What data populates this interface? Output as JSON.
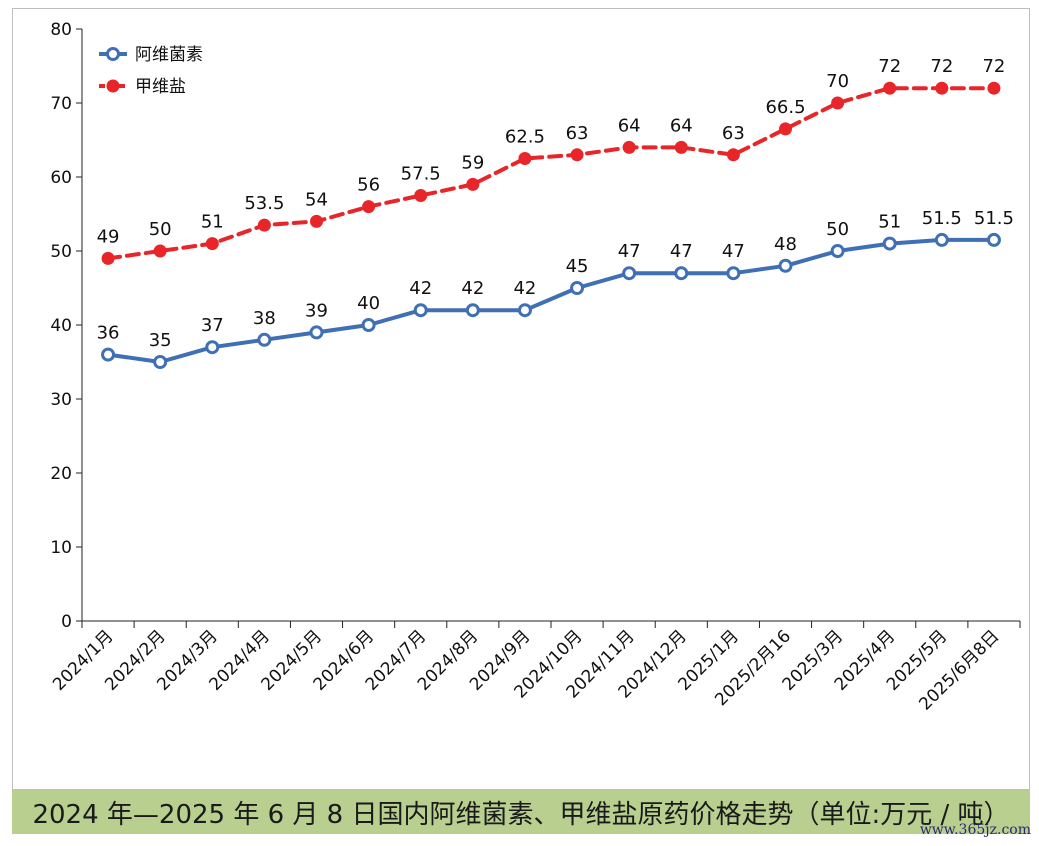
{
  "caption": "2024 年—2025 年 6 月 8 日国内阿维菌素、甲维盐原药价格走势（单位:万元 / 吨）",
  "watermark": "www.365jz.com",
  "chart_data": {
    "type": "line",
    "categories": [
      "2024/1月",
      "2024/2月",
      "2024/3月",
      "2024/4月",
      "2024/5月",
      "2024/6月",
      "2024/7月",
      "2024/8月",
      "2024/9月",
      "2024/10月",
      "2024/11月",
      "2024/12月",
      "2025/1月",
      "2025/2月16",
      "2025/3月",
      "2025/4月",
      "2025/5月",
      "2025/6月8日"
    ],
    "ylim": [
      0,
      80
    ],
    "yticks": [
      0,
      10,
      20,
      30,
      40,
      50,
      60,
      70,
      80
    ],
    "grid": false,
    "legend": "top-left",
    "series": [
      {
        "name": "阿维菌素",
        "color": "#3f6fb5",
        "dashed": false,
        "values": [
          36,
          35,
          37,
          38,
          39,
          40,
          42,
          42,
          42,
          45,
          47,
          47,
          47,
          48,
          50,
          51,
          51.5,
          51.5
        ],
        "labels": [
          "36",
          "35",
          "37",
          "38",
          "39",
          "40",
          "42",
          "42",
          "42",
          "45",
          "47",
          "47",
          "47",
          "48",
          "50",
          "51",
          "51.5",
          "51.5"
        ]
      },
      {
        "name": "甲维盐",
        "color": "#e8262a",
        "dashed": true,
        "values": [
          49,
          50,
          51,
          53.5,
          54,
          56,
          57.5,
          59,
          62.5,
          63,
          64,
          64,
          63,
          66.5,
          70,
          72,
          72,
          72
        ],
        "labels": [
          "49",
          "50",
          "51",
          "53.5",
          "54",
          "56",
          "57.5",
          "59",
          "62.5",
          "63",
          "64",
          "64",
          "63",
          "66.5",
          "70",
          "72",
          "72",
          "72"
        ]
      }
    ]
  }
}
